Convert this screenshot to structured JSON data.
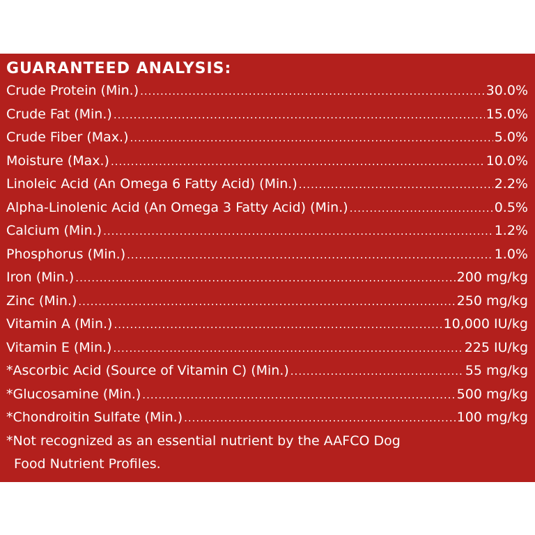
{
  "heading": "GUARANTEED ANALYSIS:",
  "rows": [
    {
      "name": "Crude Protein (Min.)",
      "value": "30.0%"
    },
    {
      "name": "Crude Fat (Min.)",
      "value": "15.0%"
    },
    {
      "name": "Crude Fiber (Max.)",
      "value": "5.0%"
    },
    {
      "name": "Moisture (Max.)",
      "value": "10.0%"
    },
    {
      "name": "Linoleic Acid (An Omega 6 Fatty Acid) (Min.)",
      "value": "2.2%"
    },
    {
      "name": "Alpha-Linolenic Acid (An Omega 3 Fatty Acid) (Min.)",
      "value": "0.5%"
    },
    {
      "name": "Calcium (Min.)",
      "value": "1.2%"
    },
    {
      "name": "Phosphorus (Min.)",
      "value": "1.0%"
    },
    {
      "name": "Iron (Min.)",
      "value": "200 mg/kg"
    },
    {
      "name": "Zinc (Min.)",
      "value": "250 mg/kg"
    },
    {
      "name": "Vitamin A (Min.)",
      "value": "10,000 IU/kg"
    },
    {
      "name": "Vitamin E (Min.)",
      "value": "225 IU/kg"
    },
    {
      "name": "*Ascorbic Acid (Source of Vitamin C) (Min.)",
      "value": "55 mg/kg"
    },
    {
      "name": "*Glucosamine (Min.)",
      "value": "500 mg/kg"
    },
    {
      "name": "*Chondroitin Sulfate (Min.)",
      "value": "100 mg/kg"
    }
  ],
  "footnote": {
    "line1": "*Not recognized as an essential nutrient by the AAFCO Dog",
    "line2": "Food Nutrient Profiles."
  }
}
